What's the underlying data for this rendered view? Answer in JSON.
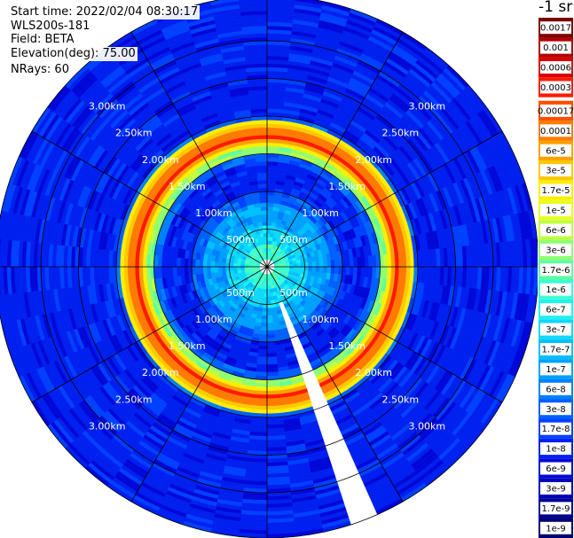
{
  "header": {
    "start_time": "Start time: 2022/02/04 08:30:17",
    "instrument": "WLS200s-181",
    "field": "Field: BETA",
    "elevation": "Elevation(deg): 75.00",
    "nrays": "NRays: 60"
  },
  "chart_data": {
    "type": "heatmap",
    "subtype": "polar-ppi",
    "range_rings_km": [
      0.5,
      1.0,
      1.5,
      2.0,
      2.5,
      3.0
    ],
    "range_ring_labels": [
      "500m",
      "1.00km",
      "1.50km",
      "2.00km",
      "2.50km",
      "3.00km"
    ],
    "radial_line_angles_deg": [
      0,
      30,
      60,
      90,
      120,
      150,
      180,
      210,
      240,
      270,
      300,
      330
    ],
    "max_range_km": 3.6,
    "n_rays": 60,
    "units_label": "-1 sr",
    "colorbar_ticks": [
      "0.0017",
      "0.001",
      "0.0006",
      "0.0003",
      "0.00017",
      "0.0001",
      "6e-5",
      "3e-5",
      "1.7e-5",
      "1e-5",
      "6e-6",
      "3e-6",
      "1.7e-6",
      "1e-6",
      "6e-7",
      "3e-7",
      "1.7e-7",
      "1e-7",
      "6e-8",
      "3e-8",
      "1.7e-8",
      "1e-8",
      "6e-9",
      "3e-9",
      "1.7e-9",
      "1e-9"
    ],
    "colorbar_colors": [
      "#7a0000",
      "#b00000",
      "#d80000",
      "#ff1a00",
      "#ff4d00",
      "#ff7a00",
      "#ffa000",
      "#ffc800",
      "#ffee00",
      "#e8ff20",
      "#c0ff40",
      "#90ff70",
      "#60ffa0",
      "#3cffd0",
      "#20f0f0",
      "#10d8f8",
      "#00c0ff",
      "#00a0ff",
      "#0080ff",
      "#0060ff",
      "#0040ff",
      "#0020f0",
      "#0008d8",
      "#0000b8",
      "#000098",
      "#000070"
    ],
    "radial_profile": [
      {
        "from_km": 0.0,
        "to_km": 0.11,
        "level": "none"
      },
      {
        "from_km": 0.11,
        "to_km": 0.3,
        "level": "1e-6"
      },
      {
        "from_km": 0.3,
        "to_km": 0.55,
        "level": "3e-7"
      },
      {
        "from_km": 0.55,
        "to_km": 0.85,
        "level": "1e-7"
      },
      {
        "from_km": 0.85,
        "to_km": 1.0,
        "level": "3e-8"
      },
      {
        "from_km": 1.0,
        "to_km": 1.42,
        "level": "1e-8"
      },
      {
        "from_km": 1.42,
        "to_km": 1.5,
        "level": "3e-8"
      },
      {
        "from_km": 1.5,
        "to_km": 1.58,
        "level": "3e-6"
      },
      {
        "from_km": 1.58,
        "to_km": 1.63,
        "level": "1.7e-5"
      },
      {
        "from_km": 1.63,
        "to_km": 1.69,
        "level": "6e-5"
      },
      {
        "from_km": 1.69,
        "to_km": 1.77,
        "level": "0.0003"
      },
      {
        "from_km": 1.77,
        "to_km": 1.84,
        "level": "0.0001"
      },
      {
        "from_km": 1.84,
        "to_km": 1.9,
        "level": "3e-5"
      },
      {
        "from_km": 1.9,
        "to_km": 1.96,
        "level": "1.7e-5"
      },
      {
        "from_km": 1.96,
        "to_km": 2.0,
        "level": "3e-8"
      },
      {
        "from_km": 2.0,
        "to_km": 3.6,
        "level": "1e-8"
      }
    ],
    "masked_ray_azimuth_deg": 156
  }
}
